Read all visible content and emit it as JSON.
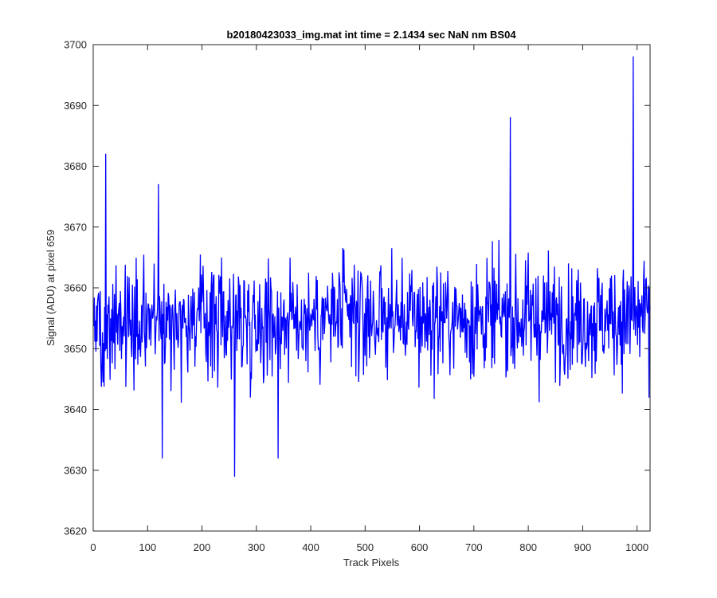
{
  "chart_data": {
    "type": "line",
    "title": "b20180423033_img.mat int time = 2.1434 sec  NaN nm BS04",
    "xlabel": "Track Pixels",
    "ylabel": "Signal (ADU) at pixel 659",
    "xlim": [
      0,
      1024
    ],
    "ylim": [
      3620,
      3700
    ],
    "xticks": [
      0,
      100,
      200,
      300,
      400,
      500,
      600,
      700,
      800,
      900,
      1000
    ],
    "yticks": [
      3620,
      3630,
      3640,
      3650,
      3660,
      3670,
      3680,
      3690,
      3700
    ],
    "grid": false,
    "legend": "none",
    "series": [
      {
        "color": "#0000ff",
        "x_start": 1,
        "x_step": 1,
        "count": 1024,
        "mean": 3655,
        "std": 6.5,
        "values_sampled_every_16px": [
          3648,
          3662,
          3655,
          3651,
          3660,
          3645,
          3657,
          3653,
          3664,
          3650,
          3656,
          3643,
          3659,
          3654,
          3661,
          3649,
          3655,
          3652,
          3666,
          3647,
          3658,
          3653,
          3650,
          3662,
          3656,
          3644,
          3659,
          3655,
          3651,
          3663,
          3648,
          3657,
          3654,
          3660,
          3646,
          3655,
          3658,
          3652,
          3661,
          3649,
          3656,
          3653,
          3664,
          3647,
          3659,
          3655,
          3650,
          3662,
          3654,
          3657,
          3648,
          3660,
          3653,
          3656,
          3651,
          3663,
          3649,
          3658,
          3655,
          3652,
          3661,
          3647,
          3657,
          3654
        ],
        "notable_points": [
          {
            "x": 23,
            "y": 3682
          },
          {
            "x": 120,
            "y": 3677
          },
          {
            "x": 127,
            "y": 3632
          },
          {
            "x": 260,
            "y": 3629
          },
          {
            "x": 340,
            "y": 3632
          },
          {
            "x": 767,
            "y": 3688
          },
          {
            "x": 993,
            "y": 3698
          },
          {
            "x": 1022,
            "y": 3642
          }
        ]
      }
    ]
  }
}
